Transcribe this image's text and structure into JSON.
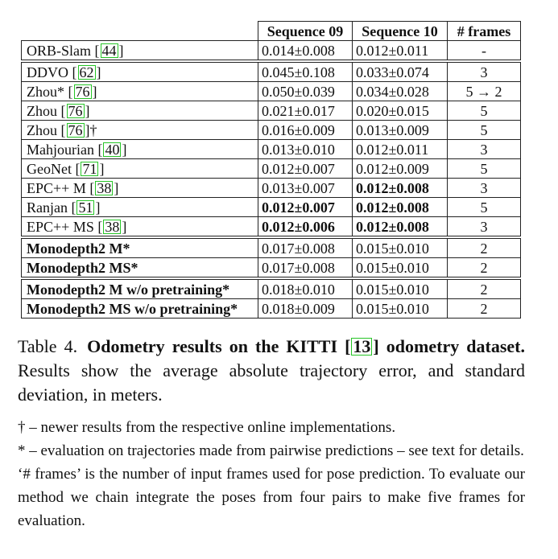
{
  "table": {
    "headers": [
      "",
      "Sequence 09",
      "Sequence 10",
      "# frames"
    ],
    "groups": [
      [
        {
          "method": "ORB-Slam [",
          "cite": "44",
          "suffix": "]",
          "s9": "0.014±0.008",
          "s10": "0.012±0.011",
          "frames": "-"
        }
      ],
      [
        {
          "method": "DDVO [",
          "cite": "62",
          "suffix": "]",
          "s9": "0.045±0.108",
          "s10": "0.033±0.074",
          "frames": "3"
        },
        {
          "method": "Zhou* [",
          "cite": "76",
          "suffix": "]",
          "s9": "0.050±0.039",
          "s10": "0.034±0.028",
          "frames": "5 → 2"
        },
        {
          "method": "Zhou [",
          "cite": "76",
          "suffix": "]",
          "s9": "0.021±0.017",
          "s10": "0.020±0.015",
          "frames": "5"
        },
        {
          "method": "Zhou [",
          "cite": "76",
          "suffix": "]†",
          "s9": "0.016±0.009",
          "s10": "0.013±0.009",
          "frames": "5"
        },
        {
          "method": "Mahjourian [",
          "cite": "40",
          "suffix": "]",
          "s9": "0.013±0.010",
          "s10": "0.012±0.011",
          "frames": "3"
        },
        {
          "method": "GeoNet [",
          "cite": "71",
          "suffix": "]",
          "s9": "0.012±0.007",
          "s10": "0.012±0.009",
          "frames": "5"
        },
        {
          "method": "EPC++ M [",
          "cite": "38",
          "suffix": "]",
          "s9": "0.013±0.007",
          "s10": "0.012±0.008",
          "frames": "3"
        },
        {
          "method": "Ranjan [",
          "cite": "51",
          "suffix": "]",
          "s9": "0.012±0.007",
          "s10": "0.012±0.008",
          "frames": "5"
        },
        {
          "method": "EPC++ MS [",
          "cite": "38",
          "suffix": "]",
          "s9": "0.012±0.006",
          "s10": "0.012±0.008",
          "frames": "3"
        }
      ],
      [
        {
          "method": "Monodepth2 M*",
          "cite": "",
          "suffix": "",
          "s9": "0.017±0.008",
          "s10": "0.015±0.010",
          "frames": "2"
        },
        {
          "method": "Monodepth2 MS*",
          "cite": "",
          "suffix": "",
          "s9": "0.017±0.008",
          "s10": "0.015±0.010",
          "frames": "2"
        }
      ],
      [
        {
          "method": "Monodepth2 M w/o pretraining*",
          "cite": "",
          "suffix": "",
          "s9": "0.018±0.010",
          "s10": "0.015±0.010",
          "frames": "2"
        },
        {
          "method": "Monodepth2 MS w/o pretraining*",
          "cite": "",
          "suffix": "",
          "s9": "0.018±0.009",
          "s10": "0.015±0.010",
          "frames": "2"
        }
      ]
    ]
  },
  "caption": {
    "label": "Table 4.",
    "heading_pre": "Odometry results on the KITTI [",
    "heading_cite": "13",
    "heading_post": "] odometry dataset.",
    "body": " Results show the average absolute trajectory error, and standard deviation, in meters."
  },
  "notes": [
    "† – newer results from the respective online implementations.",
    "* – evaluation on trajectories made from pairwise predictions – see text for details.",
    "‘# frames’ is the number of input frames used for pose prediction. To evaluate our method we chain integrate the poses from four pairs to make five frames for evaluation."
  ]
}
